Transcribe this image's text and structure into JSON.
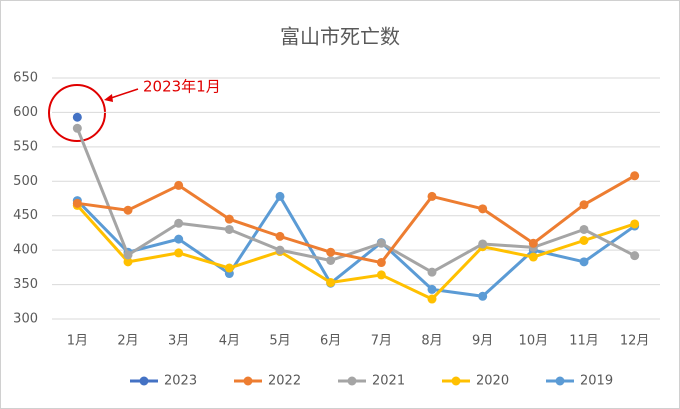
{
  "chart_data": {
    "type": "line",
    "title": "富山市死亡数",
    "categories": [
      "1月",
      "2月",
      "3月",
      "4月",
      "5月",
      "6月",
      "7月",
      "8月",
      "9月",
      "10月",
      "11月",
      "12月"
    ],
    "series": [
      {
        "name": "2023",
        "color": "#4472c4",
        "values": [
          593,
          null,
          null,
          null,
          null,
          null,
          null,
          null,
          null,
          null,
          null,
          null
        ]
      },
      {
        "name": "2022",
        "color": "#ed7d31",
        "values": [
          468,
          458,
          494,
          445,
          420,
          397,
          382,
          478,
          460,
          410,
          466,
          508
        ]
      },
      {
        "name": "2021",
        "color": "#a5a5a5",
        "values": [
          577,
          393,
          439,
          430,
          400,
          385,
          410,
          368,
          409,
          404,
          430,
          392
        ]
      },
      {
        "name": "2020",
        "color": "#ffc000",
        "values": [
          465,
          383,
          396,
          374,
          398,
          353,
          364,
          329,
          405,
          390,
          414,
          438
        ]
      },
      {
        "name": "2019",
        "color": "#5b9bd5",
        "values": [
          472,
          397,
          416,
          366,
          478,
          352,
          411,
          343,
          333,
          400,
          383,
          435
        ]
      }
    ],
    "annotations": [
      "2023年1月"
    ],
    "ylim": [
      300,
      650
    ],
    "yticks": [
      300,
      350,
      400,
      450,
      500,
      550,
      600,
      650
    ],
    "grid": true
  }
}
